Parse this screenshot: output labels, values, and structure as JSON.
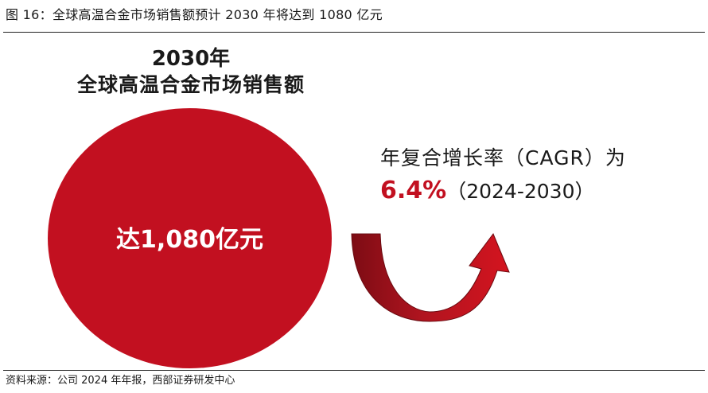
{
  "figure": {
    "title": "图 16：全球高温合金市场销售额预计 2030 年将达到 1080 亿元",
    "source": "资料来源：公司 2024 年年报，西部证券研发中心"
  },
  "circle": {
    "year": "2030年",
    "name": "全球高温合金市场销售额",
    "value_prefix": "达",
    "value_number": "1,080",
    "value_unit": "亿元"
  },
  "cagr": {
    "label": "年复合增长率（CAGR）为",
    "rate": "6.4%",
    "period": "（2024-2030）"
  },
  "colors": {
    "accent_red": "#c21020",
    "arrow_dark": "#7d0c14"
  },
  "icons": {
    "arrow": "curved-up-arrow-icon"
  }
}
